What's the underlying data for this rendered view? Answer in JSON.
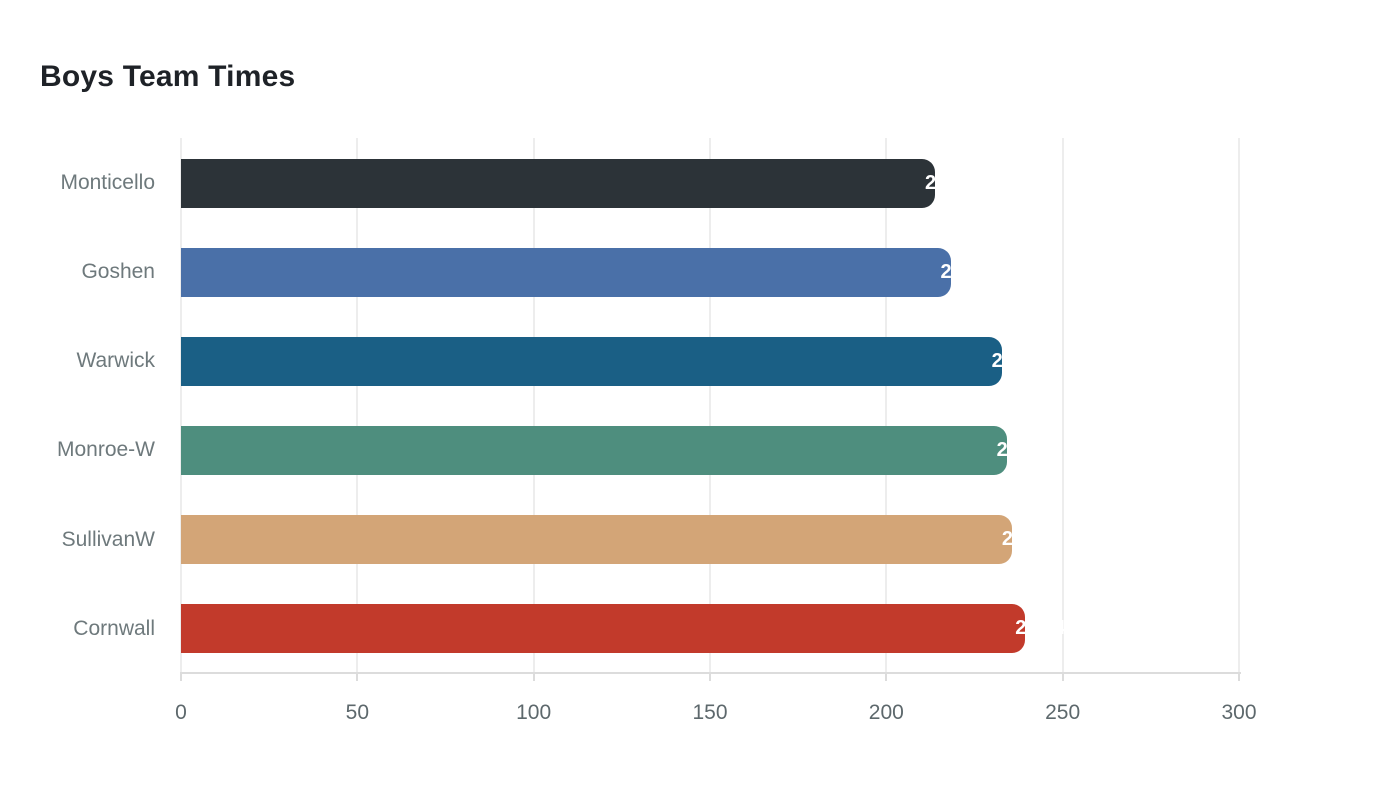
{
  "title": "Boys Team Times",
  "chart_data": {
    "type": "bar",
    "orientation": "horizontal",
    "title": "Boys Team Times",
    "xlabel": "",
    "ylabel": "",
    "categories": [
      "Monticello",
      "Goshen",
      "Warwick",
      "Monroe-W",
      "SullivanW",
      "Cornwall"
    ],
    "series": [
      {
        "name": "Team Time",
        "values": [
          213.8,
          218.2,
          232.7,
          234.1,
          235.6,
          239.4
        ]
      }
    ],
    "bar_colors": [
      "#2c3338",
      "#4a70a8",
      "#1a5f85",
      "#4e8e7e",
      "#d3a577",
      "#c23a2b"
    ],
    "x_ticks": [
      0,
      50,
      100,
      150,
      200,
      250,
      300
    ],
    "xlim": [
      0,
      300
    ],
    "grid": true,
    "legend": false,
    "value_labels": {
      "visible": true,
      "color": "#ffffff",
      "position": "end-of-bar"
    }
  },
  "colors": {
    "background": "#ffffff",
    "title_text": "#1e2227",
    "gridline": "#ededed",
    "axis_line": "#dcdcdc",
    "tick_label_text": "#5d686c",
    "category_label_text": "#6e797c"
  }
}
